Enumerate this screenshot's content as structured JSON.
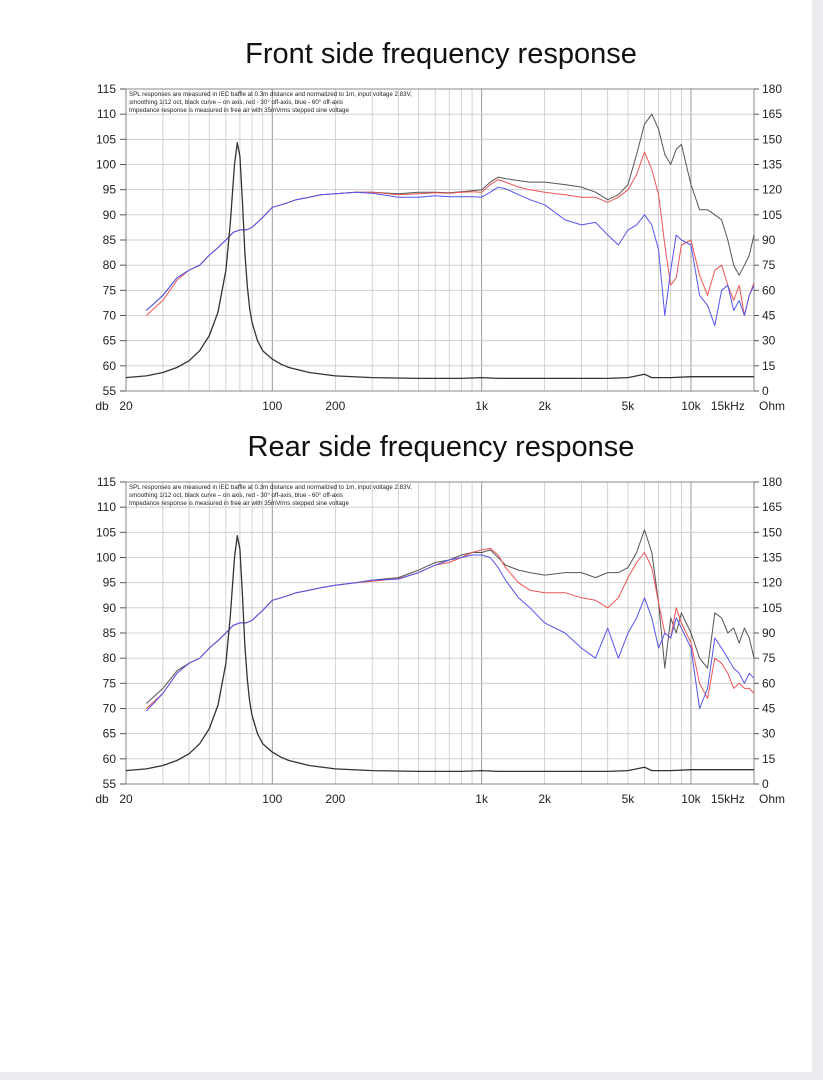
{
  "colors": {
    "spl_on_axis": "#444444",
    "spl_30deg": "#ee5555",
    "spl_60deg": "#5555ee",
    "impedance": "#333333",
    "grid": "#c8c8c8",
    "frame": "#8a8a8a"
  },
  "chart_data": [
    {
      "type": "line",
      "title": "Front side frequency response",
      "notes": [
        "SPL responses are measured in IEC baffle at  0.3m distance and normalized to 1m, input voltage 2.83V,",
        "smoothing 1/12 oct, black curve – on axis, red - 30° off-axis, blue - 60° off-axis",
        "Impedance response is measured in free air with 35mVrms stepped sine voltage"
      ],
      "y_unit": "db",
      "y2_unit": "Ohm",
      "x_scale": "log",
      "xlim": [
        20,
        20000
      ],
      "ylim": [
        55,
        115
      ],
      "y2lim": [
        0,
        180
      ],
      "x_tick_labels": [
        {
          "x": 20,
          "label": "20"
        },
        {
          "x": 100,
          "label": "100"
        },
        {
          "x": 200,
          "label": "200"
        },
        {
          "x": 1000,
          "label": "1k"
        },
        {
          "x": 2000,
          "label": "2k"
        },
        {
          "x": 5000,
          "label": "5k"
        },
        {
          "x": 10000,
          "label": "10k"
        },
        {
          "x": 15000,
          "label": "15kHz"
        }
      ],
      "y_ticks": [
        115,
        110,
        105,
        100,
        95,
        90,
        85,
        80,
        75,
        70,
        65,
        60,
        55
      ],
      "y2_ticks": [
        180,
        165,
        150,
        135,
        120,
        105,
        90,
        75,
        60,
        45,
        30,
        15,
        0
      ],
      "grid": true,
      "series": [
        {
          "key": "on_axis",
          "axis": "left",
          "x": [
            25,
            30,
            35,
            40,
            45,
            50,
            55,
            60,
            65,
            70,
            75,
            80,
            90,
            100,
            110,
            120,
            130,
            150,
            170,
            200,
            250,
            300,
            400,
            500,
            600,
            700,
            800,
            900,
            1000,
            1100,
            1200,
            1300,
            1500,
            1700,
            2000,
            2500,
            3000,
            3500,
            4000,
            4500,
            5000,
            5500,
            6000,
            6500,
            7000,
            7500,
            8000,
            8500,
            9000,
            10000,
            11000,
            12000,
            13000,
            14000,
            15000,
            16000,
            17000,
            18000,
            19000,
            20000
          ],
          "y": [
            71,
            74,
            77.5,
            79,
            80,
            82,
            83.5,
            85,
            86.5,
            87,
            87,
            87.5,
            89.5,
            91.5,
            92,
            92.5,
            93,
            93.5,
            94,
            94.2,
            94.5,
            94.5,
            94.2,
            94.5,
            94.5,
            94.4,
            94.6,
            94.8,
            95,
            96.5,
            97.5,
            97.2,
            96.8,
            96.5,
            96.5,
            96,
            95.5,
            94.5,
            93,
            94,
            96,
            102,
            108,
            110,
            107,
            102,
            100,
            103,
            104,
            96,
            91,
            91,
            90,
            89,
            85,
            80,
            78,
            80,
            82,
            86
          ]
        },
        {
          "key": "deg30",
          "axis": "left",
          "x": [
            25,
            30,
            35,
            40,
            45,
            50,
            55,
            60,
            65,
            70,
            75,
            80,
            90,
            100,
            110,
            120,
            130,
            150,
            170,
            200,
            250,
            300,
            400,
            500,
            600,
            700,
            800,
            900,
            1000,
            1100,
            1200,
            1300,
            1500,
            1700,
            2000,
            2500,
            3000,
            3500,
            4000,
            4500,
            5000,
            5500,
            6000,
            6500,
            7000,
            7500,
            8000,
            8500,
            9000,
            10000,
            11000,
            12000,
            13000,
            14000,
            15000,
            16000,
            17000,
            18000,
            19000,
            20000
          ],
          "y": [
            70,
            73,
            77,
            79,
            80,
            82,
            83.5,
            85,
            86.5,
            87,
            87,
            87.5,
            89.5,
            91.5,
            92,
            92.5,
            93,
            93.5,
            94,
            94.2,
            94.5,
            94.5,
            94,
            94.2,
            94.4,
            94.3,
            94.5,
            94.6,
            94.5,
            96,
            97,
            96.5,
            95.5,
            95,
            94.5,
            94,
            93.5,
            93.5,
            92.5,
            93.5,
            95,
            98,
            102.5,
            99,
            94,
            84,
            76,
            77.5,
            84,
            85,
            78,
            74,
            79,
            80,
            76,
            73,
            76,
            70,
            74,
            76.5
          ]
        },
        {
          "key": "deg60",
          "axis": "left",
          "x": [
            25,
            30,
            35,
            40,
            45,
            50,
            55,
            60,
            65,
            70,
            75,
            80,
            90,
            100,
            110,
            120,
            130,
            150,
            170,
            200,
            250,
            300,
            400,
            500,
            600,
            700,
            800,
            900,
            1000,
            1100,
            1200,
            1300,
            1500,
            1700,
            2000,
            2500,
            3000,
            3500,
            4000,
            4500,
            5000,
            5500,
            6000,
            6500,
            7000,
            7500,
            8000,
            8500,
            9000,
            10000,
            11000,
            12000,
            13000,
            14000,
            15000,
            16000,
            17000,
            18000,
            19000,
            20000
          ],
          "y": [
            71,
            74,
            77.5,
            79,
            80,
            82,
            83.5,
            85,
            86.5,
            87,
            87,
            87.5,
            89.5,
            91.5,
            92,
            92.5,
            93,
            93.5,
            94,
            94.2,
            94.5,
            94.3,
            93.5,
            93.5,
            93.8,
            93.6,
            93.6,
            93.6,
            93.5,
            94.5,
            95.5,
            95.2,
            94,
            93,
            92,
            89,
            88,
            88.5,
            86,
            84,
            87,
            88,
            90,
            88,
            83,
            70,
            79,
            86,
            85,
            84,
            74,
            72,
            68,
            75,
            76,
            71,
            73,
            70,
            74,
            76
          ]
        },
        {
          "key": "impedance",
          "axis": "right",
          "x": [
            20,
            25,
            30,
            35,
            40,
            45,
            50,
            55,
            60,
            63,
            66,
            68,
            70,
            72,
            74,
            76,
            78,
            80,
            85,
            90,
            100,
            110,
            120,
            150,
            200,
            300,
            500,
            800,
            1000,
            1200,
            1500,
            2000,
            3000,
            4000,
            5000,
            5500,
            6000,
            6500,
            7000,
            8000,
            10000,
            15000,
            20000
          ],
          "y": [
            8,
            9,
            11,
            14,
            18,
            24,
            33,
            47,
            72,
            100,
            135,
            148,
            140,
            112,
            82,
            62,
            49,
            41,
            30,
            24,
            19,
            16,
            14,
            11,
            9,
            8,
            7.5,
            7.5,
            8,
            7.5,
            7.5,
            7.5,
            7.5,
            7.5,
            8,
            9,
            10,
            8,
            8,
            8,
            8.5,
            8.5,
            8.5
          ]
        }
      ]
    },
    {
      "type": "line",
      "title": "Rear side frequency response",
      "notes": [
        "SPL responses are measured in IEC baffle at  0.3m distance and normalized to 1m, input voltage 2.83V,",
        "smoothing 1/12 oct, black curve – on axis, red - 30° off-axis, blue - 60° off-axis",
        "Impedance response is measured in free air with 35mVrms stepped sine voltage"
      ],
      "y_unit": "db",
      "y2_unit": "Ohm",
      "x_scale": "log",
      "xlim": [
        20,
        20000
      ],
      "ylim": [
        55,
        115
      ],
      "y2lim": [
        0,
        180
      ],
      "x_tick_labels": [
        {
          "x": 20,
          "label": "20"
        },
        {
          "x": 100,
          "label": "100"
        },
        {
          "x": 200,
          "label": "200"
        },
        {
          "x": 1000,
          "label": "1k"
        },
        {
          "x": 2000,
          "label": "2k"
        },
        {
          "x": 5000,
          "label": "5k"
        },
        {
          "x": 10000,
          "label": "10k"
        },
        {
          "x": 15000,
          "label": "15kHz"
        }
      ],
      "y_ticks": [
        115,
        110,
        105,
        100,
        95,
        90,
        85,
        80,
        75,
        70,
        65,
        60,
        55
      ],
      "y2_ticks": [
        180,
        165,
        150,
        135,
        120,
        105,
        90,
        75,
        60,
        45,
        30,
        15,
        0
      ],
      "grid": true,
      "series": [
        {
          "key": "on_axis",
          "axis": "left",
          "x": [
            25,
            30,
            35,
            40,
            45,
            50,
            55,
            60,
            65,
            70,
            75,
            80,
            90,
            100,
            110,
            120,
            130,
            150,
            170,
            200,
            250,
            300,
            400,
            500,
            600,
            700,
            800,
            900,
            1000,
            1100,
            1200,
            1300,
            1500,
            1700,
            2000,
            2500,
            3000,
            3500,
            4000,
            4500,
            5000,
            5500,
            6000,
            6500,
            7000,
            7500,
            8000,
            8500,
            9000,
            10000,
            11000,
            12000,
            13000,
            14000,
            15000,
            16000,
            17000,
            18000,
            19000,
            20000
          ],
          "y": [
            71,
            74,
            77.5,
            79,
            80,
            82,
            83.5,
            85,
            86.5,
            87,
            87,
            87.5,
            89.5,
            91.5,
            92,
            92.5,
            93,
            93.5,
            94,
            94.5,
            95,
            95.5,
            96,
            97.5,
            99,
            99.5,
            100.5,
            101,
            101,
            101.5,
            100,
            98.5,
            97.5,
            97,
            96.5,
            97,
            97,
            96,
            97,
            97,
            98,
            101,
            105.5,
            101,
            91,
            78,
            88,
            85,
            89,
            85,
            80,
            78,
            89,
            88,
            85,
            86,
            83,
            86,
            84,
            80
          ]
        },
        {
          "key": "deg30",
          "axis": "left",
          "x": [
            25,
            30,
            35,
            40,
            45,
            50,
            55,
            60,
            65,
            70,
            75,
            80,
            90,
            100,
            110,
            120,
            130,
            150,
            170,
            200,
            250,
            300,
            400,
            500,
            600,
            700,
            800,
            900,
            1000,
            1100,
            1200,
            1300,
            1500,
            1700,
            2000,
            2500,
            3000,
            3500,
            4000,
            4500,
            5000,
            5500,
            6000,
            6500,
            7000,
            7500,
            8000,
            8500,
            9000,
            10000,
            11000,
            12000,
            13000,
            14000,
            15000,
            16000,
            17000,
            18000,
            19000,
            20000
          ],
          "y": [
            70,
            73,
            77,
            79,
            80,
            82,
            83.5,
            85,
            86.5,
            87,
            87,
            87.5,
            89.5,
            91.5,
            92,
            92.5,
            93,
            93.5,
            94,
            94.5,
            95,
            95.3,
            95.8,
            97,
            98.5,
            99,
            100,
            101,
            101.5,
            101.8,
            100.5,
            98,
            95,
            93.5,
            93,
            93,
            92,
            91.5,
            90,
            92,
            96,
            99,
            101,
            98,
            91,
            85,
            84,
            90,
            87,
            83,
            75,
            72,
            80,
            79,
            77,
            74,
            75,
            74,
            74,
            73
          ]
        },
        {
          "key": "deg60",
          "axis": "left",
          "x": [
            25,
            30,
            35,
            40,
            45,
            50,
            55,
            60,
            65,
            70,
            75,
            80,
            90,
            100,
            110,
            120,
            130,
            150,
            170,
            200,
            250,
            300,
            400,
            500,
            600,
            700,
            800,
            900,
            1000,
            1100,
            1200,
            1300,
            1500,
            1700,
            2000,
            2500,
            3000,
            3500,
            4000,
            4500,
            5000,
            5500,
            6000,
            6500,
            7000,
            7500,
            8000,
            8500,
            9000,
            10000,
            11000,
            12000,
            13000,
            14000,
            15000,
            16000,
            17000,
            18000,
            19000,
            20000
          ],
          "y": [
            69.5,
            73,
            77,
            79,
            80,
            82,
            83.5,
            85,
            86.5,
            87,
            87,
            87.5,
            89.5,
            91.5,
            92,
            92.5,
            93,
            93.5,
            94,
            94.5,
            95,
            95.5,
            95.7,
            97,
            98.5,
            99.5,
            100,
            100.5,
            100.5,
            100,
            98,
            95.5,
            92,
            90,
            87,
            85,
            82,
            80,
            86,
            80,
            85,
            88,
            92,
            88,
            82,
            85,
            84,
            88,
            86,
            82,
            70,
            74,
            84,
            82,
            80,
            78,
            77,
            75,
            77,
            76
          ]
        },
        {
          "key": "impedance",
          "axis": "right",
          "x": [
            20,
            25,
            30,
            35,
            40,
            45,
            50,
            55,
            60,
            63,
            66,
            68,
            70,
            72,
            74,
            76,
            78,
            80,
            85,
            90,
            100,
            110,
            120,
            150,
            200,
            300,
            500,
            800,
            1000,
            1200,
            1500,
            2000,
            3000,
            4000,
            5000,
            5500,
            6000,
            6500,
            7000,
            8000,
            10000,
            15000,
            20000
          ],
          "y": [
            8,
            9,
            11,
            14,
            18,
            24,
            33,
            47,
            72,
            100,
            135,
            148,
            140,
            112,
            82,
            62,
            49,
            41,
            30,
            24,
            19,
            16,
            14,
            11,
            9,
            8,
            7.5,
            7.5,
            8,
            7.5,
            7.5,
            7.5,
            7.5,
            7.5,
            8,
            9,
            10,
            8,
            8,
            8,
            8.5,
            8.5,
            8.5
          ]
        }
      ]
    }
  ]
}
